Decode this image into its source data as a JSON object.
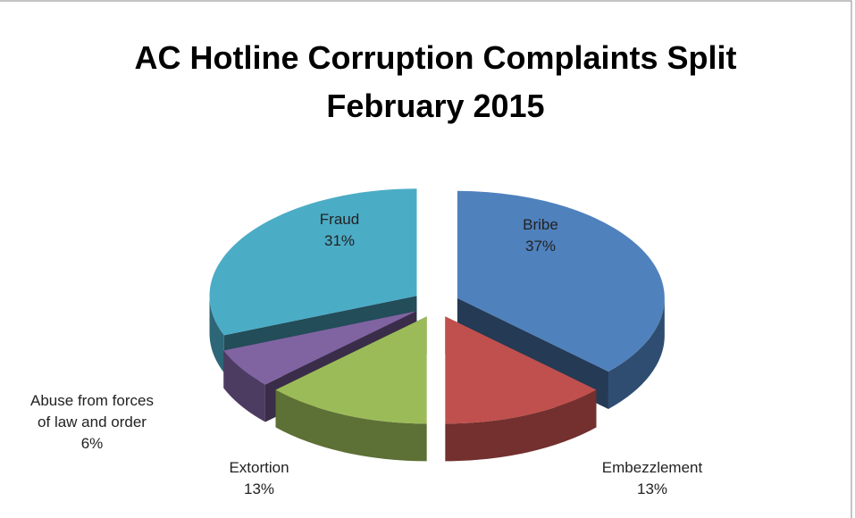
{
  "chart_data": {
    "type": "pie3d",
    "title": "AC Hotline Corruption Complaints Split February 2015",
    "categories": [
      "Bribe",
      "Embezzlement",
      "Extortion",
      "Abuse from forces of law and order",
      "Fraud"
    ],
    "values": [
      37,
      13,
      13,
      6,
      31
    ],
    "value_labels": [
      "37%",
      "13%",
      "13%",
      "6%",
      "31%"
    ],
    "colors": [
      "#4f81bd",
      "#c0504d",
      "#9bbb59",
      "#8064a2",
      "#4bacc6"
    ]
  }
}
